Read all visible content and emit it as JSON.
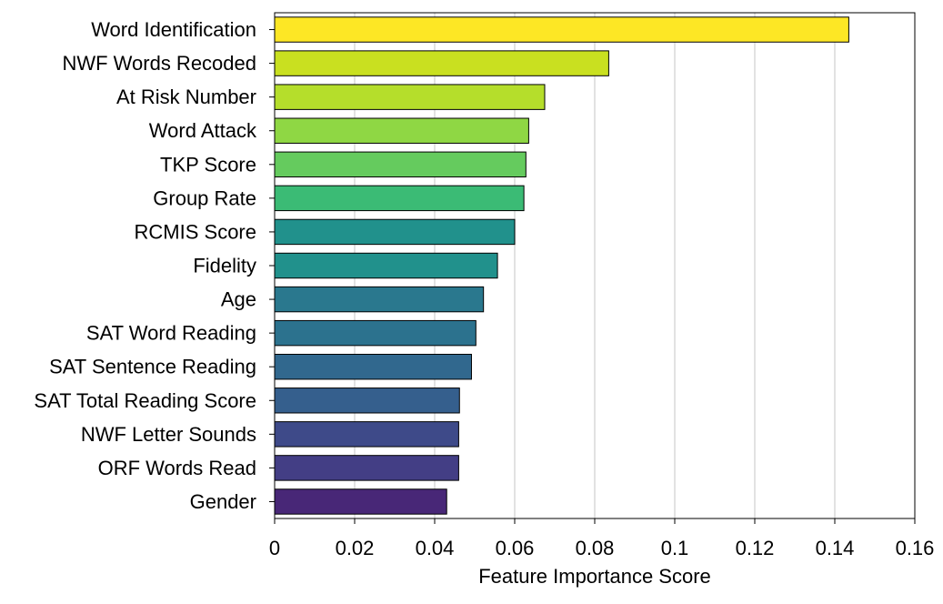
{
  "chart_data": {
    "type": "bar",
    "orientation": "horizontal",
    "categories": [
      "Word Identification",
      "NWF Words Recoded",
      "At Risk Number",
      "Word Attack",
      "TKP Score",
      "Group Rate",
      "RCMIS Score",
      "Fidelity",
      "Age",
      "SAT Word Reading",
      "SAT Sentence Reading",
      "SAT Total Reading Score",
      "NWF Letter Sounds",
      "ORF Words Read",
      "Gender"
    ],
    "values": [
      0.1435,
      0.0835,
      0.0675,
      0.0635,
      0.0628,
      0.0623,
      0.06,
      0.0557,
      0.0522,
      0.0503,
      0.0492,
      0.0462,
      0.046,
      0.046,
      0.043
    ],
    "colors": [
      "#fde725",
      "#c9e020",
      "#b5de2b",
      "#8fd744",
      "#65cb5e",
      "#3bbb75",
      "#21918c",
      "#21918c",
      "#2a788e",
      "#2c728e",
      "#31688e",
      "#355f8d",
      "#3e4a89",
      "#433e85",
      "#482777"
    ],
    "title": "",
    "xlabel": "Feature Importance Score",
    "ylabel": "",
    "xlim": [
      0,
      0.16
    ],
    "xticks": [
      0,
      0.02,
      0.04,
      0.06,
      0.08,
      0.1,
      0.12,
      0.14,
      0.16
    ],
    "xtick_labels": [
      "0",
      "0.02",
      "0.04",
      "0.06",
      "0.08",
      "0.1",
      "0.12",
      "0.14",
      "0.16"
    ],
    "grid": "vertical",
    "legend": "none"
  }
}
